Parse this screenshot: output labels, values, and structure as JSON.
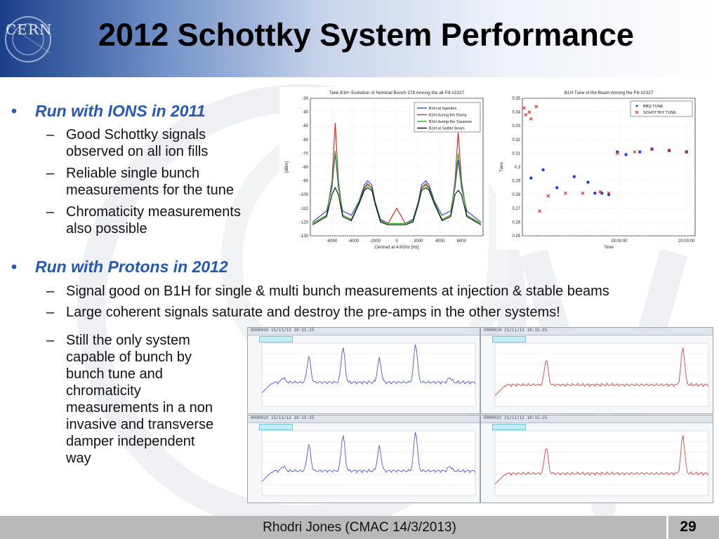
{
  "slide": {
    "title": "2012 Schottky System Performance",
    "logo_text": "CERN",
    "footer": "Rhodri Jones (CMAC 14/3/2013)",
    "page_number": "29"
  },
  "bullets": [
    {
      "heading": "Run with IONS in 2011",
      "items": [
        [
          "Good Schottky signals",
          "observed on all ion fills"
        ],
        [
          "Reliable single bunch",
          "measurements for the tune"
        ],
        [
          "Chromaticity measurements",
          "also possible"
        ]
      ]
    },
    {
      "heading": "Run with Protons in 2012",
      "items": [
        [
          "Signal good on B1H for single & multi bunch measurements at injection & stable beams"
        ],
        [
          "Large coherent signals saturate and destroy the pre-amps in the other systems!"
        ],
        [
          "Still the only system",
          "capable of bunch by",
          "bunch tune and",
          "chromaticity",
          "measurements in a non",
          "invasive and transverse",
          "damper independent",
          "way"
        ]
      ]
    }
  ],
  "chart_data": [
    {
      "type": "line",
      "title": "Tank B1H: Evolution of Nominal Bunch 278 Among the all Fill #2327",
      "xlabel": "Centred at 4.8Ghz [Hz]",
      "ylabel": "[dBm]",
      "xlim": [
        -8000,
        8000
      ],
      "ylim": [
        -130,
        -30
      ],
      "xticks": [
        "-6000",
        "-4000",
        "-2000",
        "0",
        "2000",
        "4000",
        "6000"
      ],
      "yticks": [
        "-30",
        "-40",
        "-50",
        "-60",
        "-70",
        "-80",
        "-90",
        "-100",
        "-110",
        "-120",
        "-130"
      ],
      "legend": [
        "B1H at Injection",
        "B1H during the Ramp",
        "B1H during the Squeeze",
        "B1H at Satble Beam"
      ],
      "legend_colors": [
        "#1f3fe0",
        "#e01818",
        "#18b018",
        "#000000"
      ],
      "series": [
        {
          "name": "B1H at Injection",
          "x": [
            -7800,
            -6500,
            -6000,
            -5700,
            -5400,
            -5000,
            -4200,
            -3500,
            -3000,
            -2700,
            -2300,
            -2000,
            -1500,
            -800,
            0,
            800,
            1500,
            2000,
            2300,
            2700,
            3000,
            3500,
            4200,
            5000,
            5400,
            5700,
            6000,
            6500,
            7800
          ],
          "y": [
            -120,
            -112,
            -95,
            -70,
            -95,
            -112,
            -115,
            -105,
            -93,
            -90,
            -93,
            -105,
            -118,
            -121,
            -121,
            -121,
            -118,
            -105,
            -93,
            -90,
            -93,
            -105,
            -115,
            -112,
            -95,
            -75,
            -95,
            -112,
            -120
          ]
        },
        {
          "name": "B1H during the Ramp",
          "x": [
            -7800,
            -6500,
            -6000,
            -5700,
            -5400,
            -5000,
            -4200,
            -3500,
            -3000,
            -2700,
            -2300,
            -2000,
            -1500,
            -800,
            0,
            800,
            1500,
            2000,
            2300,
            2700,
            3000,
            3500,
            4200,
            5000,
            5400,
            5700,
            6000,
            6500,
            7800
          ],
          "y": [
            -121,
            -115,
            -90,
            -48,
            -90,
            -115,
            -118,
            -106,
            -95,
            -92,
            -95,
            -106,
            -119,
            -121,
            -110,
            -121,
            -119,
            -106,
            -95,
            -92,
            -95,
            -106,
            -118,
            -115,
            -90,
            -55,
            -90,
            -115,
            -121
          ]
        },
        {
          "name": "B1H during the Squeeze",
          "x": [
            -7800,
            -6500,
            -6000,
            -5700,
            -5400,
            -5000,
            -4200,
            -3500,
            -3000,
            -2700,
            -2300,
            -2000,
            -1500,
            -800,
            0,
            800,
            1500,
            2000,
            2300,
            2700,
            3000,
            3500,
            4200,
            5000,
            5400,
            5700,
            6000,
            6500,
            7800
          ],
          "y": [
            -121,
            -115,
            -92,
            -68,
            -92,
            -115,
            -118,
            -106,
            -96,
            -93,
            -96,
            -106,
            -119,
            -121,
            -121,
            -121,
            -119,
            -106,
            -96,
            -93,
            -96,
            -106,
            -118,
            -115,
            -92,
            -70,
            -92,
            -115,
            -121
          ]
        },
        {
          "name": "B1H at Satble Beam",
          "x": [
            -7800,
            -6500,
            -6000,
            -5700,
            -5400,
            -5000,
            -4200,
            -3500,
            -3000,
            -2700,
            -2300,
            -2000,
            -1500,
            -800,
            0,
            800,
            1500,
            2000,
            2300,
            2700,
            3000,
            3500,
            4200,
            5000,
            5400,
            5700,
            6000,
            6500,
            7800
          ],
          "y": [
            -122,
            -116,
            -100,
            -95,
            -100,
            -116,
            -119,
            -107,
            -97,
            -95,
            -97,
            -107,
            -120,
            -122,
            -122,
            -122,
            -120,
            -107,
            -97,
            -95,
            -97,
            -107,
            -119,
            -116,
            -100,
            -97,
            -100,
            -116,
            -122
          ]
        }
      ]
    },
    {
      "type": "scatter",
      "title": "B1H Tune of the Beam Among the Fill #2327",
      "xlabel": "Time",
      "ylabel": "Tune",
      "ylim": [
        0.25,
        0.35
      ],
      "xticks": [
        "19:00:00",
        "20:00:00"
      ],
      "yticks": [
        "0.35",
        "0.34",
        "0.33",
        "0.32",
        "0.31",
        "0.3",
        "0.29",
        "0.28",
        "0.27",
        "0.26",
        "0.25"
      ],
      "legend": [
        "BBQ TUNE",
        "SCHOTTKY TUNE"
      ],
      "legend_colors": [
        "#1f3fe0",
        "#e01818"
      ],
      "series": [
        {
          "name": "BBQ TUNE",
          "t": [
            0.05,
            0.12,
            0.2,
            0.3,
            0.38,
            0.42,
            0.46,
            0.5,
            0.55,
            0.6,
            0.68,
            0.75,
            0.85,
            0.95
          ],
          "values": [
            0.292,
            0.298,
            0.285,
            0.293,
            0.289,
            0.281,
            0.281,
            0.28,
            0.311,
            0.309,
            0.311,
            0.313,
            0.312,
            0.311
          ]
        },
        {
          "name": "SCHOTTKY TUNE",
          "t": [
            0.01,
            0.02,
            0.04,
            0.05,
            0.08,
            0.1,
            0.15,
            0.25,
            0.35,
            0.45,
            0.5,
            0.55,
            0.65,
            0.75,
            0.85,
            0.95
          ],
          "values": [
            0.343,
            0.338,
            0.34,
            0.335,
            0.344,
            0.268,
            0.279,
            0.281,
            0.281,
            0.282,
            0.281,
            0.31,
            0.311,
            0.313,
            0.312,
            0.311
          ]
        }
      ]
    }
  ],
  "screens": [
    {
      "bar": "000001H 15/11/12 10:15:25",
      "color": "#4a56d8"
    },
    {
      "bar": "000001H 15/11/12 10:15:25",
      "color": "#e04040"
    },
    {
      "bar": "000001V 15/11/12 10:15:25",
      "color": "#4a56d8"
    },
    {
      "bar": "000001V 15/11/12 10:15:25",
      "color": "#e04040"
    }
  ]
}
